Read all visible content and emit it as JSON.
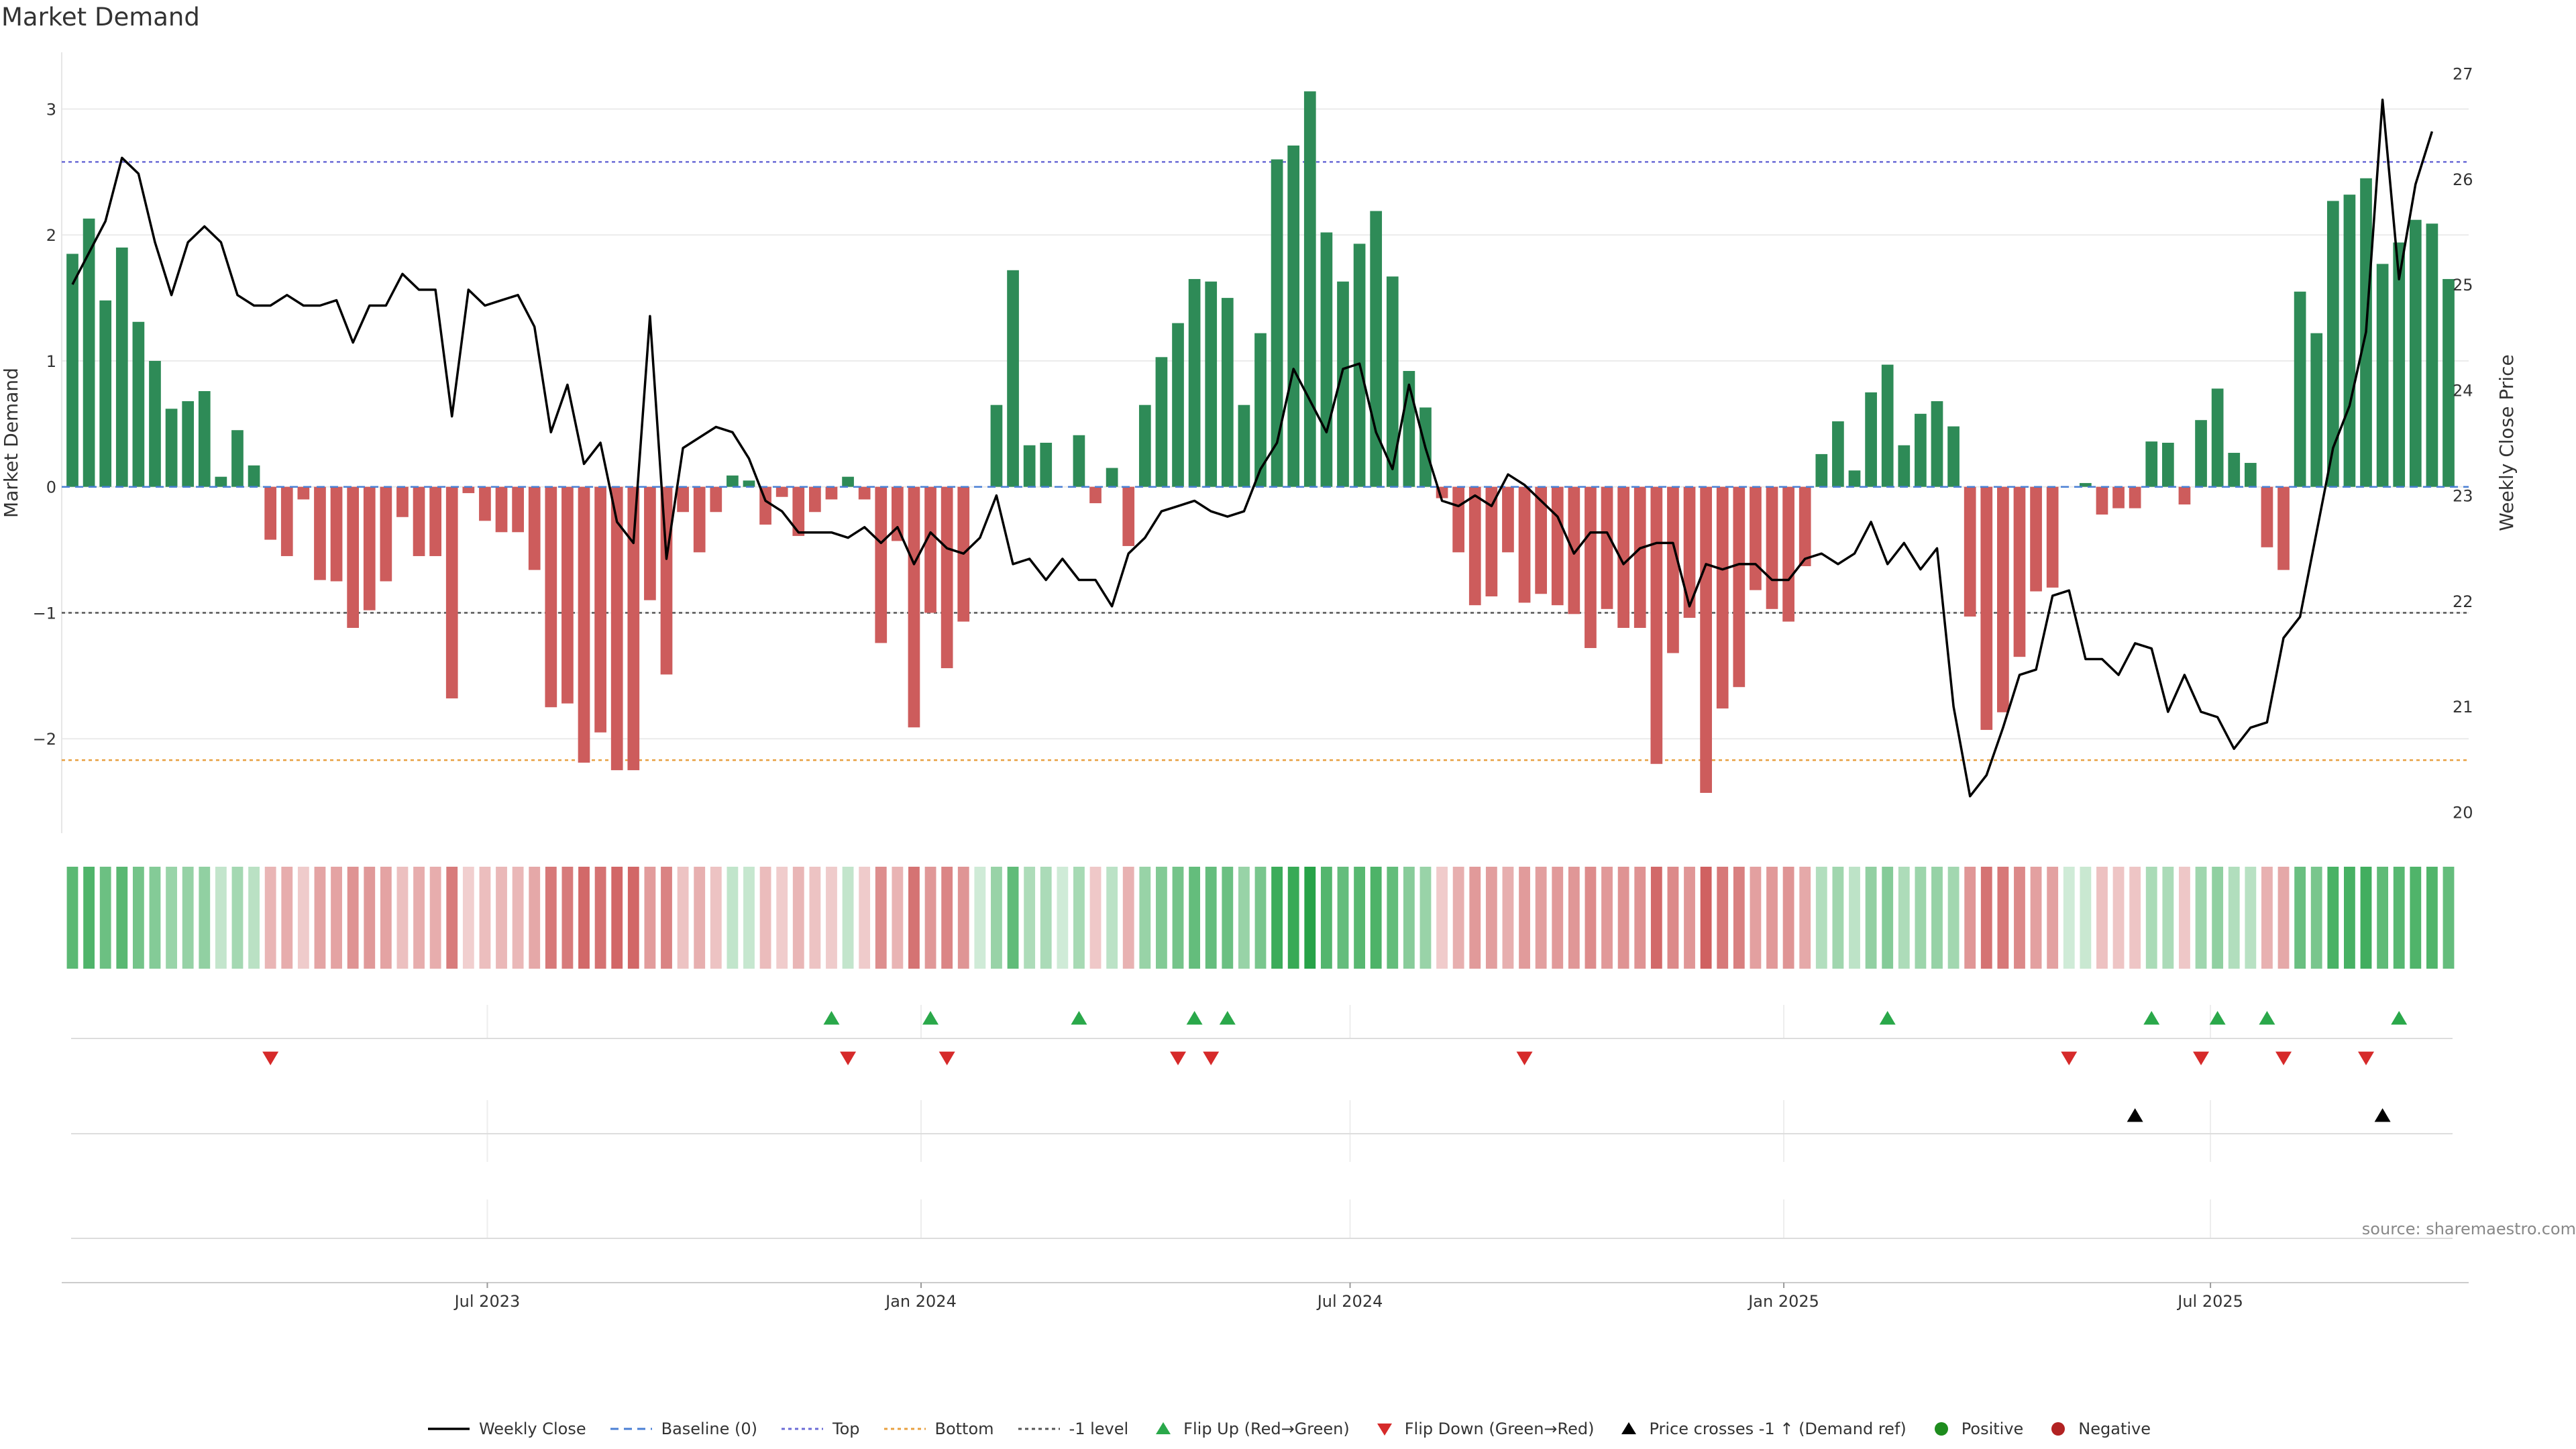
{
  "title": "Market Demand",
  "source": "source: sharemaestro.com",
  "colors": {
    "positive": "#2e8b57",
    "negative": "#cd5c5c",
    "close": "#000000",
    "baseline": "#4a7fd4",
    "top": "#6b6bd6",
    "bottom": "#e8a040",
    "minus1": "#555555",
    "flip_up": "#2aa84a",
    "flip_down": "#d62a2a",
    "cross": "#000000",
    "dot_positive": "#1e8c1e",
    "dot_negative": "#b22222"
  },
  "legend": [
    {
      "key": "close",
      "label": "Weekly Close"
    },
    {
      "key": "baseline",
      "label": "Baseline (0)"
    },
    {
      "key": "top",
      "label": "Top"
    },
    {
      "key": "bottom",
      "label": "Bottom"
    },
    {
      "key": "minus1",
      "label": "-1 level"
    },
    {
      "key": "flip-up",
      "label": "Flip Up (Red→Green)"
    },
    {
      "key": "flip-down",
      "label": "Flip Down (Green→Red)"
    },
    {
      "key": "price-cross",
      "label": "Price crosses -1 ↑ (Demand ref)"
    },
    {
      "key": "positive",
      "label": "Positive"
    },
    {
      "key": "negative",
      "label": "Negative"
    }
  ],
  "chart_data": {
    "type": "bar",
    "x_start": "2023-01-06",
    "x_interval_days": 7,
    "ylabel": "Market Demand",
    "ylabel_right": "Weekly Close Price",
    "ylim": [
      -2.75,
      3.45
    ],
    "ylim_right": [
      19.8,
      27.2
    ],
    "yticks": [
      3,
      2,
      1,
      0,
      -1,
      -2
    ],
    "ytick_labels": [
      "3",
      "2",
      "1",
      "0",
      "−1",
      "−2"
    ],
    "yticks_right": [
      27,
      26,
      25,
      24,
      23,
      22,
      21,
      20
    ],
    "xticks": [
      {
        "date": "2023-07-01",
        "label": "Jul 2023"
      },
      {
        "date": "2024-01-01",
        "label": "Jan 2024"
      },
      {
        "date": "2024-07-01",
        "label": "Jul 2024"
      },
      {
        "date": "2025-01-01",
        "label": "Jan 2025"
      },
      {
        "date": "2025-07-01",
        "label": "Jul 2025"
      }
    ],
    "reference_lines": {
      "top": 2.58,
      "bottom": -2.17,
      "minus1": -1.0,
      "baseline": 0
    },
    "grid": true,
    "legend_position": "bottom",
    "series": [
      {
        "name": "Market Demand",
        "type": "bar",
        "values": [
          1.85,
          2.13,
          1.48,
          1.9,
          1.31,
          1.0,
          0.62,
          0.68,
          0.76,
          0.08,
          0.45,
          0.17,
          -0.42,
          -0.55,
          -0.1,
          -0.74,
          -0.75,
          -1.12,
          -0.98,
          -0.75,
          -0.24,
          -0.55,
          -0.55,
          -1.68,
          -0.05,
          -0.27,
          -0.36,
          -0.36,
          -0.66,
          -1.75,
          -1.72,
          -2.19,
          -1.95,
          -2.25,
          -2.25,
          -0.9,
          -1.49,
          -0.2,
          -0.52,
          -0.2,
          0.09,
          0.05,
          -0.3,
          -0.08,
          -0.39,
          -0.2,
          -0.1,
          0.08,
          -0.1,
          -1.24,
          -0.43,
          -1.91,
          -1.0,
          -1.44,
          -1.07,
          0.0,
          0.65,
          1.72,
          0.33,
          0.35,
          0.0,
          0.41,
          -0.13,
          0.15,
          -0.47,
          0.65,
          1.03,
          1.3,
          1.65,
          1.63,
          1.5,
          0.65,
          1.22,
          2.6,
          2.71,
          3.14,
          2.02,
          1.63,
          1.93,
          2.19,
          1.67,
          0.92,
          0.63,
          -0.09,
          -0.52,
          -0.94,
          -0.87,
          -0.52,
          -0.92,
          -0.85,
          -0.94,
          -1.01,
          -1.28,
          -0.97,
          -1.12,
          -1.12,
          -2.2,
          -1.32,
          -1.04,
          -2.43,
          -1.76,
          -1.59,
          -0.82,
          -0.97,
          -1.07,
          -0.63,
          0.26,
          0.52,
          0.13,
          0.75,
          0.97,
          0.33,
          0.58,
          0.68,
          0.48,
          -1.03,
          -1.93,
          -1.79,
          -1.35,
          -0.83,
          -0.8,
          0.0,
          0.03,
          -0.22,
          -0.17,
          -0.17,
          0.36,
          0.35,
          -0.14,
          0.53,
          0.78,
          0.27,
          0.19,
          -0.48,
          -0.66,
          1.55,
          1.22,
          2.27,
          2.32,
          2.45,
          1.77,
          1.94,
          2.12,
          2.09,
          1.65
        ]
      },
      {
        "name": "Weekly Close",
        "type": "line",
        "axis": "right",
        "values": [
          25.0,
          25.3,
          25.6,
          26.2,
          26.05,
          25.4,
          24.9,
          25.4,
          25.55,
          25.4,
          24.9,
          24.8,
          24.8,
          24.9,
          24.8,
          24.8,
          24.85,
          24.45,
          24.8,
          24.8,
          25.1,
          24.95,
          24.95,
          23.75,
          24.95,
          24.8,
          24.85,
          24.9,
          24.6,
          23.6,
          24.05,
          23.3,
          23.5,
          22.75,
          22.55,
          24.7,
          22.4,
          23.45,
          23.55,
          23.65,
          23.6,
          23.35,
          22.95,
          22.85,
          22.65,
          22.65,
          22.65,
          22.6,
          22.7,
          22.55,
          22.7,
          22.35,
          22.65,
          22.5,
          22.45,
          22.6,
          23.0,
          22.35,
          22.4,
          22.2,
          22.4,
          22.2,
          22.2,
          21.95,
          22.45,
          22.6,
          22.85,
          22.9,
          22.95,
          22.85,
          22.8,
          22.85,
          23.25,
          23.5,
          24.2,
          23.9,
          23.6,
          24.2,
          24.25,
          23.6,
          23.25,
          24.05,
          23.45,
          22.95,
          22.9,
          23.0,
          22.9,
          23.2,
          23.1,
          22.95,
          22.8,
          22.45,
          22.65,
          22.65,
          22.35,
          22.5,
          22.55,
          22.55,
          21.95,
          22.35,
          22.3,
          22.35,
          22.35,
          22.2,
          22.2,
          22.4,
          22.45,
          22.35,
          22.45,
          22.75,
          22.35,
          22.55,
          22.3,
          22.5,
          21.0,
          20.15,
          20.35,
          20.8,
          21.3,
          21.35,
          22.05,
          22.1,
          21.45,
          21.45,
          21.3,
          21.6,
          21.55,
          20.95,
          21.3,
          20.95,
          20.9,
          20.6,
          20.8,
          20.85,
          21.65,
          21.85,
          22.65,
          23.45,
          23.85,
          24.55,
          26.75,
          25.05,
          25.95,
          26.45
        ]
      },
      {
        "name": "Flip Up (Red→Green)",
        "type": "marker",
        "dates": [
          "2023-11-24",
          "2024-01-05",
          "2024-03-08",
          "2024-04-26",
          "2024-05-10",
          "2025-02-14",
          "2025-06-06",
          "2025-07-04",
          "2025-07-25",
          "2025-09-19"
        ]
      },
      {
        "name": "Flip Down (Green→Red)",
        "type": "marker",
        "dates": [
          "2023-03-31",
          "2023-12-01",
          "2024-01-12",
          "2024-04-19",
          "2024-05-03",
          "2024-09-13",
          "2025-05-02",
          "2025-06-27",
          "2025-08-01",
          "2025-09-05"
        ]
      },
      {
        "name": "Price crosses -1 ↑ (Demand ref)",
        "type": "marker",
        "dates": [
          "2025-05-30",
          "2025-09-12"
        ]
      }
    ]
  }
}
